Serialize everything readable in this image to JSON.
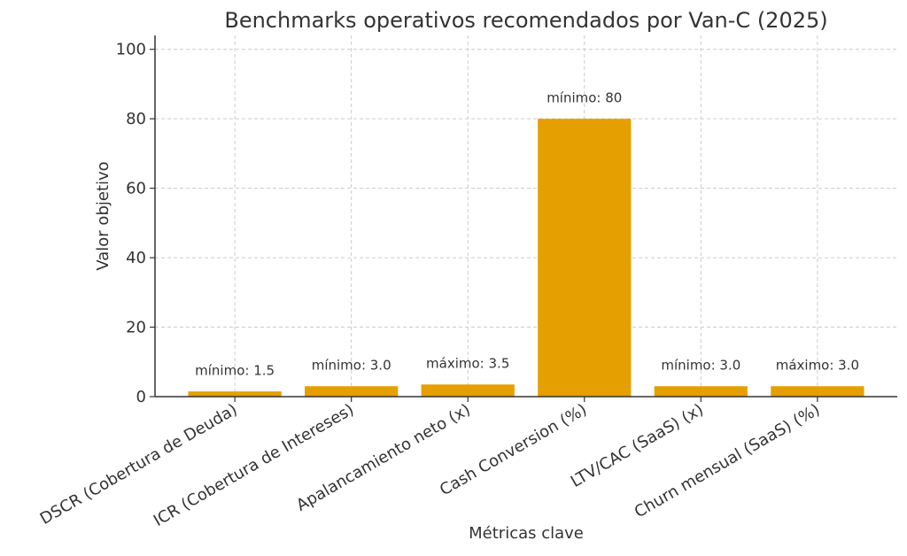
{
  "chart_data": {
    "type": "bar",
    "title": "Benchmarks operativos recomendados por Van-C (2025)",
    "xlabel": "Métricas clave",
    "ylabel": "Valor objetivo",
    "categories": [
      "DSCR (Cobertura de Deuda)",
      "ICR (Cobertura de Intereses)",
      "Apalancamiento neto (x)",
      "Cash Conversion (%)",
      "LTV/CAC (SaaS) (x)",
      "Churn mensual (SaaS) (%)"
    ],
    "values": [
      1.5,
      3.0,
      3.5,
      80,
      3.0,
      3.0
    ],
    "data_labels": [
      "mínimo: 1.5",
      "mínimo: 3.0",
      "máximo: 3.5",
      "mínimo: 80",
      "mínimo: 3.0",
      "máximo: 3.0"
    ],
    "ylim": [
      0,
      104
    ],
    "yticks": [
      0,
      20,
      40,
      60,
      80,
      100
    ],
    "grid": true,
    "bar_color": "#E69F00"
  }
}
